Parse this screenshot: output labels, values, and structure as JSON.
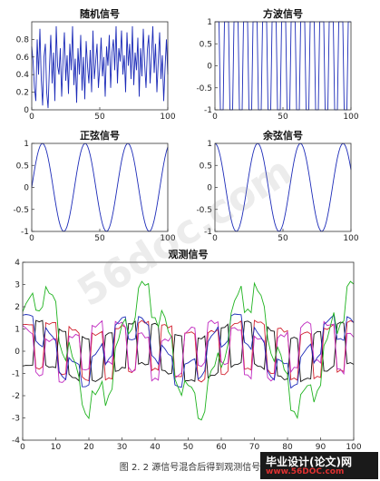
{
  "figure": {
    "caption": "图 2. 2   源信号混合后得到观测信号",
    "watermark": "56doc.com",
    "logo_line1": "毕业设计(论文)网",
    "logo_line2": "www.56DOC.com"
  },
  "colors": {
    "blue": "#1c2bb8",
    "mix_red": "#d2202e",
    "mix_green": "#1fb31f",
    "mix_magenta": "#c02ac0",
    "mix_black": "#111111",
    "axis": "#333333"
  },
  "chart_data": [
    {
      "id": "random",
      "type": "line",
      "title": "随机信号",
      "xlim": [
        0,
        100
      ],
      "ylim": [
        0,
        1
      ],
      "xticks": [
        0,
        50,
        100
      ],
      "yticks": [
        0,
        0.2,
        0.4,
        0.6,
        0.8
      ],
      "series": [
        {
          "color": "#1c2bb8",
          "values": [
            0.72,
            0.55,
            0.25,
            0.1,
            0.8,
            0.4,
            0.92,
            0.35,
            0.05,
            0.6,
            0.75,
            0.2,
            0.02,
            0.48,
            0.85,
            0.3,
            0.65,
            0.1,
            0.95,
            0.5,
            0.4,
            0.7,
            0.15,
            0.55,
            0.88,
            0.33,
            0.62,
            0.18,
            0.75,
            0.45,
            0.95,
            0.28,
            0.58,
            0.08,
            0.7,
            0.4,
            0.85,
            0.22,
            0.6,
            0.12,
            0.78,
            0.5,
            0.3,
            0.68,
            0.2,
            0.9,
            0.35,
            0.55,
            0.75,
            0.25,
            0.48,
            0.82,
            0.38,
            0.6,
            0.15,
            0.72,
            0.5,
            0.85,
            0.25,
            0.65,
            0.8,
            0.45,
            0.95,
            0.3,
            0.7,
            0.55,
            0.9,
            0.4,
            0.62,
            0.2,
            0.88,
            0.5,
            0.75,
            0.35,
            0.95,
            0.28,
            0.65,
            0.45,
            0.82,
            0.15,
            0.7,
            0.38,
            0.92,
            0.52,
            0.25,
            0.68,
            0.85,
            0.3,
            0.6,
            0.95,
            0.42,
            0.75,
            0.2,
            0.55,
            0.88,
            0.35,
            0.62,
            0.1,
            0.48,
            0.8,
            0.4
          ]
        }
      ]
    },
    {
      "id": "square",
      "type": "line",
      "title": "方波信号",
      "xlim": [
        0,
        100
      ],
      "ylim": [
        -1,
        1
      ],
      "xticks": [
        0,
        50,
        100
      ],
      "yticks": [
        -1,
        -0.5,
        0,
        0.5,
        1
      ],
      "series": [
        {
          "color": "#1c2bb8",
          "function": "square",
          "period_samples": 7,
          "amplitude": 1
        }
      ]
    },
    {
      "id": "sine",
      "type": "line",
      "title": "正弦信号",
      "xlim": [
        0,
        100
      ],
      "ylim": [
        -1,
        1
      ],
      "xticks": [
        0,
        50,
        100
      ],
      "yticks": [
        -1,
        -0.5,
        0,
        0.5,
        1
      ],
      "series": [
        {
          "color": "#1c2bb8",
          "function": "sin",
          "period_samples": 31.4,
          "amplitude": 1
        }
      ]
    },
    {
      "id": "cosine",
      "type": "line",
      "title": "余弦信号",
      "xlim": [
        0,
        100
      ],
      "ylim": [
        -1,
        1
      ],
      "xticks": [
        0,
        50,
        100
      ],
      "yticks": [
        -1,
        -0.5,
        0,
        0.5,
        1
      ],
      "series": [
        {
          "color": "#1c2bb8",
          "function": "cos",
          "period_samples": 31.4,
          "amplitude": 1
        }
      ]
    },
    {
      "id": "observed",
      "type": "line",
      "title": "观测信号",
      "xlim": [
        0,
        100
      ],
      "ylim": [
        -4,
        4
      ],
      "xticks": [
        0,
        10,
        20,
        30,
        40,
        50,
        60,
        70,
        80,
        90,
        100
      ],
      "yticks": [
        -4,
        -3,
        -2,
        -1,
        0,
        1,
        2,
        3,
        4
      ],
      "series": [
        {
          "color": "#d2202e",
          "mix": [
            0.2,
            1.05,
            0.25,
            0.1
          ]
        },
        {
          "color": "#111111",
          "mix": [
            0.15,
            -0.95,
            0.3,
            0.25
          ]
        },
        {
          "color": "#c02ac0",
          "mix": [
            0.25,
            0.9,
            -0.35,
            0.2
          ]
        },
        {
          "color": "#1c2bb8",
          "mix": [
            0.1,
            0.55,
            0.35,
            1.05
          ]
        },
        {
          "color": "#1fb31f",
          "mix": [
            0.35,
            0.6,
            2.2,
            1.1
          ]
        }
      ]
    }
  ]
}
